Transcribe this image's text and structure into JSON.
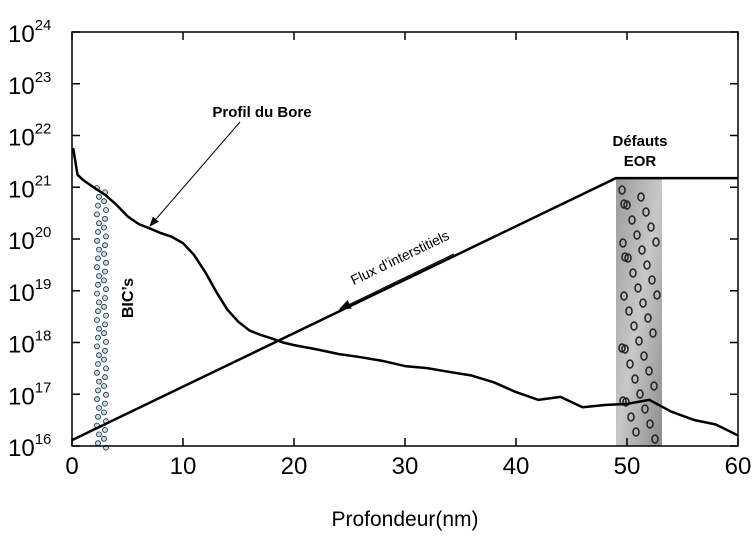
{
  "chart_data": {
    "type": "line",
    "x_label": "Profondeur(nm)",
    "annotations": {
      "profile": "Profil du Bore",
      "flux": "Flux d’interstitiels",
      "defects_line1": "Défauts",
      "defects_line2": "EOR",
      "bics": "BIC’s"
    },
    "xlim": [
      0,
      60
    ],
    "xticks": [
      0,
      10,
      20,
      30,
      40,
      50,
      60
    ],
    "ylim": [
      1e+16,
      1e+24
    ],
    "log_y": true,
    "yticks": [
      {
        "value": 1e+16,
        "label": "10",
        "exponent": "16"
      },
      {
        "value": 1e+17,
        "label": "10",
        "exponent": "17"
      },
      {
        "value": 1e+18,
        "label": "10",
        "exponent": "18"
      },
      {
        "value": 1e+19,
        "label": "10",
        "exponent": "19"
      },
      {
        "value": 1e+20,
        "label": "10",
        "exponent": "20"
      },
      {
        "value": 1e+21,
        "label": "10",
        "exponent": "21"
      },
      {
        "value": 1e+22,
        "label": "10",
        "exponent": "22"
      },
      {
        "value": 1e+23,
        "label": "10",
        "exponent": "23"
      },
      {
        "value": 1e+24,
        "label": "10",
        "exponent": "24"
      }
    ],
    "series": [
      {
        "color": "#000000",
        "x": [
          0.1,
          0.5,
          1,
          2,
          3,
          4,
          5,
          6,
          7,
          8,
          9,
          10,
          11,
          12,
          13,
          14,
          15,
          16,
          17,
          18,
          19,
          20,
          22,
          24,
          26,
          28,
          30,
          32,
          34,
          36,
          38,
          40,
          42,
          44,
          46,
          48,
          50,
          52,
          54,
          56,
          58,
          60
        ],
        "values": [
          5.75e+21,
          1.74e+21,
          1.38e+21,
          9.8e+20,
          7.1e+20,
          4.6e+20,
          2.75e+20,
          1.95e+20,
          1.6e+20,
          1.3e+20,
          1.1e+20,
          8.3e+19,
          4.9e+19,
          2.3e+19,
          9.5e+18,
          4.3e+18,
          2.5e+18,
          1.7e+18,
          1.4e+18,
          1.2e+18,
          1e+18,
          8.9e+17,
          7.4e+17,
          6e+17,
          5.2e+17,
          4.4e+17,
          3.5e+17,
          3.2e+17,
          2.7e+17,
          2.3e+17,
          1.7e+17,
          1.1e+17,
          7.8e+16,
          8.9e+16,
          5.6e+16,
          6.2e+16,
          6.5e+16,
          7.8e+16,
          4.6e+16,
          3.2e+16,
          2.6e+16,
          1.6e+16
        ]
      },
      {
        "color": "#000000",
        "x": [
          0,
          49,
          60
        ],
        "values": [
          1.3e+16,
          1.5e+21,
          1.5e+21
        ]
      }
    ]
  }
}
